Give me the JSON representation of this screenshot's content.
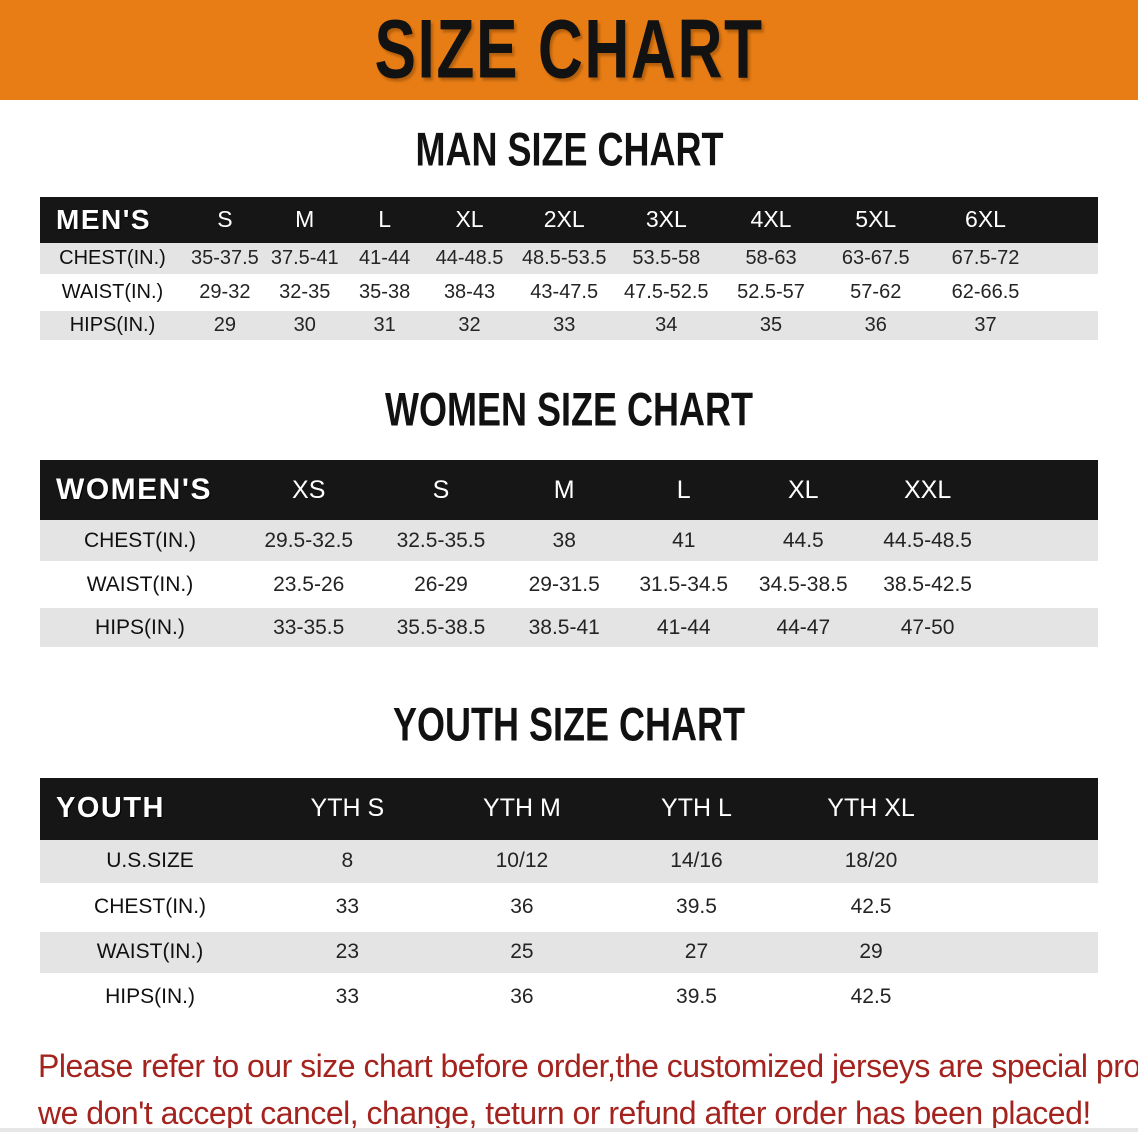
{
  "banner": {
    "title": "SIZE CHART"
  },
  "colors": {
    "banner_bg": "#e87d15",
    "header_bar_bg": "#161616",
    "header_bar_text": "#ffffff",
    "row_alt_bg": "#e4e4e4",
    "disclaimer_text": "#a5231e"
  },
  "chart_data": [
    {
      "type": "table",
      "title": "MAN SIZE CHART",
      "corner_label": "MEN'S",
      "columns": [
        "S",
        "M",
        "L",
        "XL",
        "2XL",
        "3XL",
        "4XL",
        "5XL",
        "6XL"
      ],
      "rows": [
        {
          "label": "CHEST(IN.)",
          "values": [
            "35-37.5",
            "37.5-41",
            "41-44",
            "44-48.5",
            "48.5-53.5",
            "53.5-58",
            "58-63",
            "63-67.5",
            "67.5-72"
          ]
        },
        {
          "label": "WAIST(IN.)",
          "values": [
            "29-32",
            "32-35",
            "35-38",
            "38-43",
            "43-47.5",
            "47.5-52.5",
            "52.5-57",
            "57-62",
            "62-66.5"
          ]
        },
        {
          "label": "HIPS(IN.)",
          "values": [
            "29",
            "30",
            "31",
            "32",
            "33",
            "34",
            "35",
            "36",
            "37"
          ]
        }
      ]
    },
    {
      "type": "table",
      "title": "WOMEN SIZE CHART",
      "corner_label": "WOMEN'S",
      "columns": [
        "XS",
        "S",
        "M",
        "L",
        "XL",
        "XXL"
      ],
      "rows": [
        {
          "label": "CHEST(IN.)",
          "values": [
            "29.5-32.5",
            "32.5-35.5",
            "38",
            "41",
            "44.5",
            "44.5-48.5"
          ]
        },
        {
          "label": "WAIST(IN.)",
          "values": [
            "23.5-26",
            "26-29",
            "29-31.5",
            "31.5-34.5",
            "34.5-38.5",
            "38.5-42.5"
          ]
        },
        {
          "label": "HIPS(IN.)",
          "values": [
            "33-35.5",
            "35.5-38.5",
            "38.5-41",
            "41-44",
            "44-47",
            "47-50"
          ]
        }
      ]
    },
    {
      "type": "table",
      "title": "YOUTH SIZE CHART",
      "corner_label": "YOUTH",
      "columns": [
        "YTH S",
        "YTH M",
        "YTH L",
        "YTH XL"
      ],
      "rows": [
        {
          "label": "U.S.SIZE",
          "values": [
            "8",
            "10/12",
            "14/16",
            "18/20"
          ]
        },
        {
          "label": "CHEST(IN.)",
          "values": [
            "33",
            "36",
            "39.5",
            "42.5"
          ]
        },
        {
          "label": "WAIST(IN.)",
          "values": [
            "23",
            "25",
            "27",
            "29"
          ]
        },
        {
          "label": "HIPS(IN.)",
          "values": [
            "33",
            "36",
            "39.5",
            "42.5"
          ]
        }
      ]
    }
  ],
  "disclaimer": {
    "line1": "Please refer to our size chart before order,the customized jerseys are special products,",
    "line2": "we don't accept cancel, change, teturn or refund after order has been placed!"
  }
}
